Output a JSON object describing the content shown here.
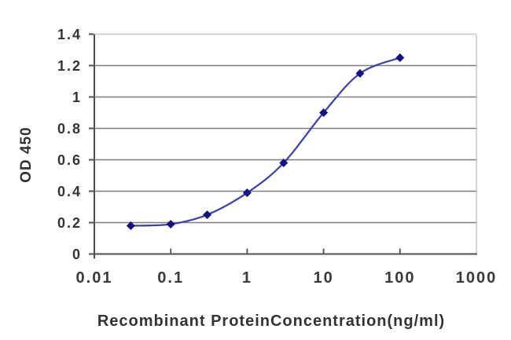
{
  "chart_data": {
    "type": "line",
    "x_scale": "log",
    "x": [
      0.03,
      0.1,
      0.3,
      1,
      3,
      10,
      30,
      100
    ],
    "y": [
      0.18,
      0.19,
      0.25,
      0.39,
      0.58,
      0.9,
      1.15,
      1.25
    ],
    "title": "",
    "xlabel": "Recombinant ProteinConcentration(ng/ml)",
    "ylabel": "OD 450",
    "xlim": [
      0.01,
      1000
    ],
    "ylim": [
      0,
      1.4
    ],
    "x_ticks": [
      "0.01",
      "0.1",
      "1",
      "10",
      "100",
      "1000"
    ],
    "y_ticks": [
      "0",
      "0.2",
      "0.4",
      "0.6",
      "0.8",
      "1",
      "1.2",
      "1.4"
    ],
    "grid": true,
    "legend": "none",
    "marker": "diamond",
    "colors": {
      "line": "#4244a5",
      "marker": "#13127f",
      "gridline": "#7d7d7d",
      "plot_border": "#c9c9c9",
      "axis": "#4f4f4f",
      "tick_text": "#333333",
      "background": "#ffffff"
    }
  }
}
